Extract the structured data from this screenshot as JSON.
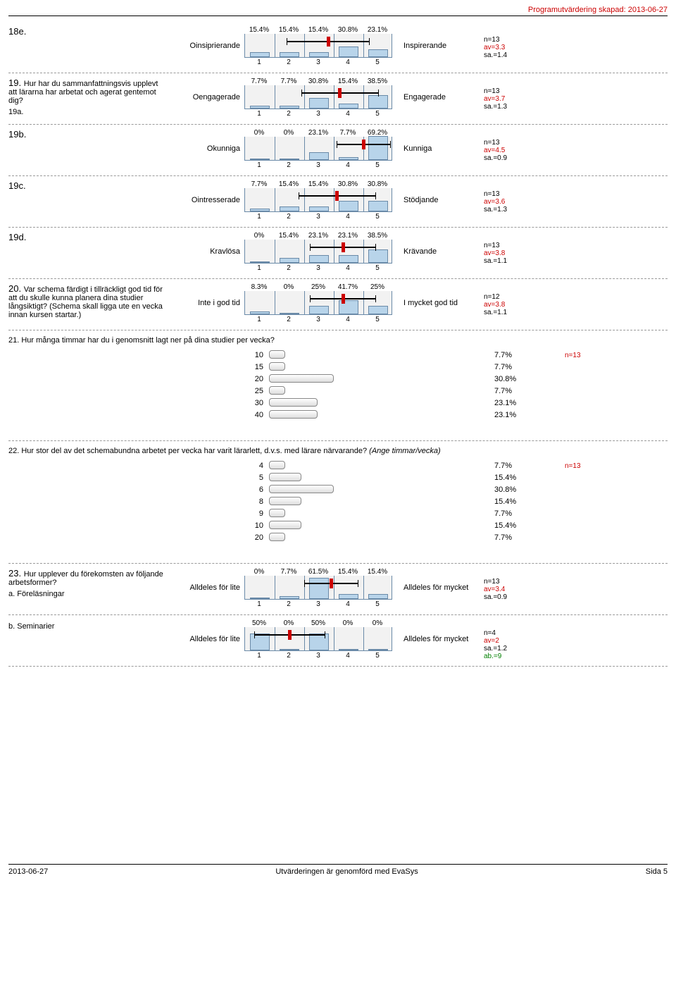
{
  "header": "Programutvärdering skapad: 2013-06-27",
  "likert": [
    {
      "id": "q18e",
      "num": "18e.",
      "text": "",
      "left": "Oinsiprierande",
      "right": "Inspirerande",
      "pcts": [
        "15.4%",
        "15.4%",
        "15.4%",
        "30.8%",
        "23.1%"
      ],
      "vals": [
        15.4,
        15.4,
        15.4,
        30.8,
        23.1
      ],
      "av": 3.3,
      "sd_lo": 1.4,
      "sd_hi": 1.4,
      "stats": [
        "n=13",
        "av=3.3",
        "sa.=1.4"
      ]
    },
    {
      "id": "q19",
      "num": "19.",
      "text": "Hur har du sammanfattningsvis upplevt att lärarna har arbetat och agerat gentemot dig?",
      "sub": "19a.",
      "left": "Oengagerade",
      "right": "Engagerade",
      "pcts": [
        "7.7%",
        "7.7%",
        "30.8%",
        "15.4%",
        "38.5%"
      ],
      "vals": [
        7.7,
        7.7,
        30.8,
        15.4,
        38.5
      ],
      "av": 3.7,
      "sd_lo": 1.3,
      "sd_hi": 1.3,
      "stats": [
        "n=13",
        "av=3.7",
        "sa.=1.3"
      ]
    },
    {
      "id": "q19b",
      "num": "19b.",
      "text": "",
      "left": "Okunniga",
      "right": "Kunniga",
      "pcts": [
        "0%",
        "0%",
        "23.1%",
        "7.7%",
        "69.2%"
      ],
      "vals": [
        0,
        0,
        23.1,
        7.7,
        69.2
      ],
      "av": 4.5,
      "sd_lo": 0.9,
      "sd_hi": 0.9,
      "stats": [
        "n=13",
        "av=4.5",
        "sa.=0.9"
      ]
    },
    {
      "id": "q19c",
      "num": "19c.",
      "text": "",
      "left": "Ointresserade",
      "right": "Stödjande",
      "pcts": [
        "7.7%",
        "15.4%",
        "15.4%",
        "30.8%",
        "30.8%"
      ],
      "vals": [
        7.7,
        15.4,
        15.4,
        30.8,
        30.8
      ],
      "av": 3.6,
      "sd_lo": 1.3,
      "sd_hi": 1.3,
      "stats": [
        "n=13",
        "av=3.6",
        "sa.=1.3"
      ]
    },
    {
      "id": "q19d",
      "num": "19d.",
      "text": "",
      "left": "Kravlösa",
      "right": "Krävande",
      "pcts": [
        "0%",
        "15.4%",
        "23.1%",
        "23.1%",
        "38.5%"
      ],
      "vals": [
        0,
        15.4,
        23.1,
        23.1,
        38.5
      ],
      "av": 3.8,
      "sd_lo": 1.1,
      "sd_hi": 1.1,
      "stats": [
        "n=13",
        "av=3.8",
        "sa.=1.1"
      ]
    },
    {
      "id": "q20",
      "num": "20.",
      "text": "Var schema färdigt i tillräckligt god tid för att du skulle kunna planera dina studier långsiktigt? (Schema skall ligga ute en vecka innan kursen startar.)",
      "left": "Inte i god tid",
      "right": "I mycket god tid",
      "pcts": [
        "8.3%",
        "0%",
        "25%",
        "41.7%",
        "25%"
      ],
      "vals": [
        8.3,
        0,
        25,
        41.7,
        25
      ],
      "av": 3.8,
      "sd_lo": 1.1,
      "sd_hi": 1.1,
      "stats": [
        "n=12",
        "av=3.8",
        "sa.=1.1"
      ]
    }
  ],
  "hbar": [
    {
      "id": "q21",
      "q": "21. Hur många timmar har du i genomsnitt lagt ner på dina studier per vecka?",
      "n": "n=13",
      "rows": [
        {
          "label": "10",
          "pct": "7.7%",
          "v": 7.7
        },
        {
          "label": "15",
          "pct": "7.7%",
          "v": 7.7
        },
        {
          "label": "20",
          "pct": "30.8%",
          "v": 30.8
        },
        {
          "label": "25",
          "pct": "7.7%",
          "v": 7.7
        },
        {
          "label": "30",
          "pct": "23.1%",
          "v": 23.1
        },
        {
          "label": "40",
          "pct": "23.1%",
          "v": 23.1
        }
      ]
    },
    {
      "id": "q22",
      "q": "22. Hur stor del av det schemabundna arbetet per vecka har varit lärarlett, d.v.s. med lärare närvarande? ",
      "qitalic": "(Ange timmar/vecka)",
      "n": "n=13",
      "rows": [
        {
          "label": "4",
          "pct": "7.7%",
          "v": 7.7
        },
        {
          "label": "5",
          "pct": "15.4%",
          "v": 15.4
        },
        {
          "label": "6",
          "pct": "30.8%",
          "v": 30.8
        },
        {
          "label": "8",
          "pct": "15.4%",
          "v": 15.4
        },
        {
          "label": "9",
          "pct": "7.7%",
          "v": 7.7
        },
        {
          "label": "10",
          "pct": "15.4%",
          "v": 15.4
        },
        {
          "label": "20",
          "pct": "7.7%",
          "v": 7.7
        }
      ]
    }
  ],
  "likert2": [
    {
      "id": "q23a",
      "num": "23.",
      "text": "Hur upplever du förekomsten av följande arbetsformer?",
      "sub": "a. Föreläsningar",
      "left": "Alldeles för lite",
      "right": "Alldeles för mycket",
      "pcts": [
        "0%",
        "7.7%",
        "61.5%",
        "15.4%",
        "15.4%"
      ],
      "vals": [
        0,
        7.7,
        61.5,
        15.4,
        15.4
      ],
      "av": 3.4,
      "sd_lo": 0.9,
      "sd_hi": 0.9,
      "stats": [
        "n=13",
        "av=3.4",
        "sa.=0.9"
      ]
    },
    {
      "id": "q23b",
      "num": "",
      "text": "",
      "sub": "b. Seminarier",
      "left": "Alldeles för lite",
      "right": "Alldeles för mycket",
      "pcts": [
        "50%",
        "0%",
        "50%",
        "0%",
        "0%"
      ],
      "vals": [
        50,
        0,
        50,
        0,
        0
      ],
      "av": 2,
      "sd_lo": 1.2,
      "sd_hi": 1.2,
      "stats": [
        "n=4",
        "av=2",
        "sa.=1.2",
        "ab.=9"
      ]
    }
  ],
  "footer": {
    "left": "2013-06-27",
    "center": "Utvärderingen är genomförd med EvaSys",
    "right": "Sida 5"
  },
  "colors": {
    "bar": "#b8d4ea",
    "border": "#6a8aa8",
    "marker": "#c00",
    "bg": "#f2f2f2",
    "hbar_scale": 3.0
  }
}
